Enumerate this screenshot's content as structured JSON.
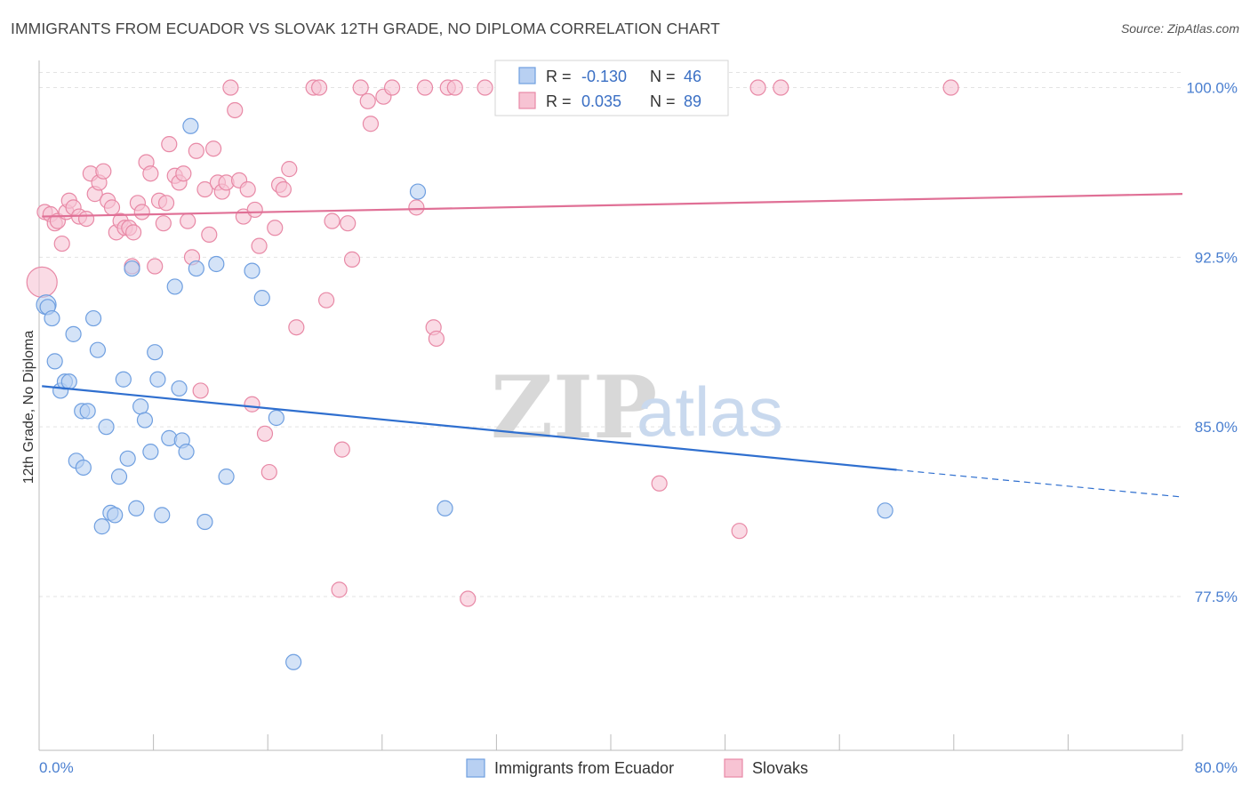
{
  "header": {
    "title": "IMMIGRANTS FROM ECUADOR VS SLOVAK 12TH GRADE, NO DIPLOMA CORRELATION CHART",
    "source": "Source: ZipAtlas.com"
  },
  "watermark": {
    "zip": "ZIP",
    "atlas": "atlas"
  },
  "colors": {
    "blue_fill": "#b8d0f2",
    "blue_stroke": "#6f9fe0",
    "blue_line": "#2f6fcf",
    "pink_fill": "#f7c3d3",
    "pink_stroke": "#e889a6",
    "pink_line": "#e07096",
    "tick_label": "#4a7fd0",
    "grid": "#e3e3e3"
  },
  "legend": {
    "rows": [
      {
        "r_label": "R = ",
        "r_value": "-0.130",
        "n_label": "N = ",
        "n_value": "46"
      },
      {
        "r_label": "R = ",
        "r_value": "0.035",
        "n_label": "N = ",
        "n_value": "89"
      }
    ]
  },
  "chart_data": {
    "type": "scatter",
    "title": "IMMIGRANTS FROM ECUADOR VS SLOVAK 12TH GRADE, NO DIPLOMA CORRELATION CHART",
    "xlabel": "",
    "ylabel": "12th Grade, No Diploma",
    "xlim": [
      0,
      80
    ],
    "ylim": [
      70.7,
      101.2
    ],
    "x_tick_labels": [
      "0.0%",
      "80.0%"
    ],
    "y_ticks": [
      77.5,
      85.0,
      92.5,
      100.0
    ],
    "y_tick_labels": [
      "77.5%",
      "85.0%",
      "92.5%",
      "100.0%"
    ],
    "grid": true,
    "legend_placement": "top-center",
    "series": [
      {
        "name": "Immigrants from Ecuador",
        "color": "#6f9fe0",
        "R": -0.13,
        "N": 46,
        "trend": {
          "x0": 0.2,
          "y0": 86.8,
          "x1": 60.0,
          "y1": 83.1,
          "dash_to_x": 80.0,
          "dash_to_y": 81.9
        },
        "points": [
          [
            0.5,
            90.4
          ],
          [
            0.6,
            90.3
          ],
          [
            0.9,
            89.8
          ],
          [
            1.1,
            87.9
          ],
          [
            1.5,
            86.6
          ],
          [
            1.8,
            87.0
          ],
          [
            2.1,
            87.0
          ],
          [
            2.4,
            89.1
          ],
          [
            2.6,
            83.5
          ],
          [
            3.0,
            85.7
          ],
          [
            3.1,
            83.2
          ],
          [
            3.4,
            85.7
          ],
          [
            3.8,
            89.8
          ],
          [
            4.1,
            88.4
          ],
          [
            4.4,
            80.6
          ],
          [
            4.7,
            85.0
          ],
          [
            5.0,
            81.2
          ],
          [
            5.3,
            81.1
          ],
          [
            5.6,
            82.8
          ],
          [
            5.9,
            87.1
          ],
          [
            6.2,
            83.6
          ],
          [
            6.5,
            92.0
          ],
          [
            6.8,
            81.4
          ],
          [
            7.1,
            85.9
          ],
          [
            7.4,
            85.3
          ],
          [
            7.8,
            83.9
          ],
          [
            8.1,
            88.3
          ],
          [
            8.3,
            87.1
          ],
          [
            8.6,
            81.1
          ],
          [
            9.1,
            84.5
          ],
          [
            9.5,
            91.2
          ],
          [
            9.8,
            86.7
          ],
          [
            10.0,
            84.4
          ],
          [
            10.3,
            83.9
          ],
          [
            10.6,
            98.3
          ],
          [
            11.0,
            92.0
          ],
          [
            11.6,
            80.8
          ],
          [
            12.4,
            92.2
          ],
          [
            13.1,
            82.8
          ],
          [
            14.9,
            91.9
          ],
          [
            15.6,
            90.7
          ],
          [
            16.6,
            85.4
          ],
          [
            17.8,
            74.6
          ],
          [
            26.5,
            95.4
          ],
          [
            28.4,
            81.4
          ],
          [
            59.2,
            81.3
          ]
        ]
      },
      {
        "name": "Slovaks",
        "color": "#e889a6",
        "R": 0.035,
        "N": 89,
        "trend": {
          "x0": 0.2,
          "y0": 94.3,
          "x1": 80.0,
          "y1": 95.3
        },
        "points": [
          [
            0.2,
            91.4
          ],
          [
            0.4,
            94.5
          ],
          [
            0.8,
            94.4
          ],
          [
            1.1,
            94.0
          ],
          [
            1.3,
            94.1
          ],
          [
            1.6,
            93.1
          ],
          [
            1.9,
            94.5
          ],
          [
            2.1,
            95.0
          ],
          [
            2.4,
            94.7
          ],
          [
            2.8,
            94.3
          ],
          [
            3.3,
            94.2
          ],
          [
            3.6,
            96.2
          ],
          [
            3.9,
            95.3
          ],
          [
            4.2,
            95.8
          ],
          [
            4.5,
            96.3
          ],
          [
            4.8,
            95.0
          ],
          [
            5.1,
            94.7
          ],
          [
            5.4,
            93.6
          ],
          [
            5.7,
            94.1
          ],
          [
            6.0,
            93.8
          ],
          [
            6.3,
            93.8
          ],
          [
            6.5,
            92.1
          ],
          [
            6.6,
            93.6
          ],
          [
            6.9,
            94.9
          ],
          [
            7.2,
            94.5
          ],
          [
            7.5,
            96.7
          ],
          [
            7.8,
            96.2
          ],
          [
            8.1,
            92.1
          ],
          [
            8.4,
            95.0
          ],
          [
            8.7,
            94.0
          ],
          [
            8.9,
            94.9
          ],
          [
            9.1,
            97.5
          ],
          [
            9.5,
            96.1
          ],
          [
            9.8,
            95.8
          ],
          [
            10.1,
            96.2
          ],
          [
            10.4,
            94.1
          ],
          [
            10.7,
            92.5
          ],
          [
            11.0,
            97.2
          ],
          [
            11.3,
            86.6
          ],
          [
            11.6,
            95.5
          ],
          [
            11.9,
            93.5
          ],
          [
            12.2,
            97.3
          ],
          [
            12.5,
            95.8
          ],
          [
            12.8,
            95.4
          ],
          [
            13.1,
            95.8
          ],
          [
            13.4,
            100.0
          ],
          [
            13.7,
            99.0
          ],
          [
            14.0,
            95.9
          ],
          [
            14.3,
            94.3
          ],
          [
            14.6,
            95.5
          ],
          [
            14.9,
            86.0
          ],
          [
            15.1,
            94.6
          ],
          [
            15.4,
            93.0
          ],
          [
            15.8,
            84.7
          ],
          [
            16.1,
            83.0
          ],
          [
            16.5,
            93.8
          ],
          [
            16.8,
            95.7
          ],
          [
            17.1,
            95.5
          ],
          [
            17.5,
            96.4
          ],
          [
            18.0,
            89.4
          ],
          [
            19.2,
            100.0
          ],
          [
            19.6,
            100.0
          ],
          [
            20.1,
            90.6
          ],
          [
            20.5,
            94.1
          ],
          [
            21.0,
            77.8
          ],
          [
            21.2,
            84.0
          ],
          [
            21.6,
            94.0
          ],
          [
            21.9,
            92.4
          ],
          [
            22.5,
            100.0
          ],
          [
            23.0,
            99.4
          ],
          [
            23.2,
            98.4
          ],
          [
            24.1,
            99.6
          ],
          [
            24.7,
            100.0
          ],
          [
            26.4,
            94.7
          ],
          [
            27.0,
            100.0
          ],
          [
            27.6,
            89.4
          ],
          [
            27.8,
            88.9
          ],
          [
            28.6,
            100.0
          ],
          [
            29.1,
            100.0
          ],
          [
            30.0,
            77.4
          ],
          [
            31.2,
            100.0
          ],
          [
            32.9,
            100.0
          ],
          [
            34.9,
            100.0
          ],
          [
            38.1,
            100.0
          ],
          [
            43.4,
            82.5
          ],
          [
            49.0,
            80.4
          ],
          [
            50.3,
            100.0
          ],
          [
            51.9,
            100.0
          ],
          [
            63.8,
            100.0
          ]
        ]
      }
    ]
  }
}
